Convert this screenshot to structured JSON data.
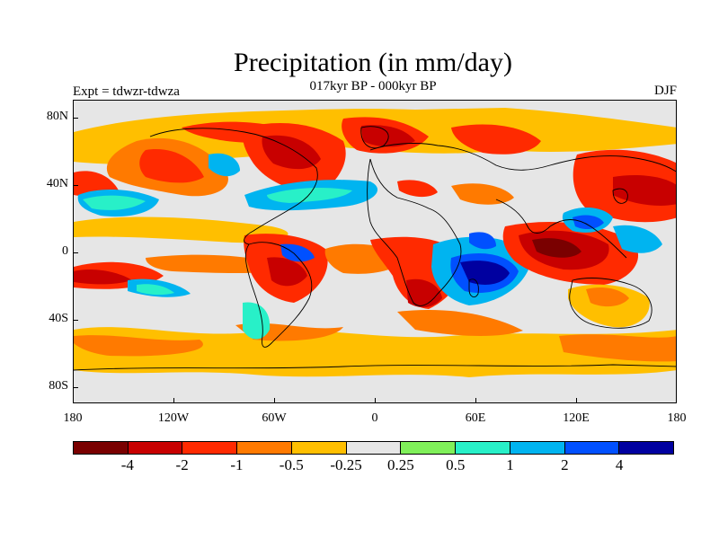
{
  "header": {
    "title": "Precipitation (in mm/day)",
    "subtitle": "017kyr BP - 000kyr BP",
    "experiment": "Expt = tdwzr-tdwza",
    "season": "DJF"
  },
  "axes": {
    "lat_labels": [
      "80N",
      "40N",
      "0",
      "40S",
      "80S"
    ],
    "lon_labels": [
      "180",
      "120W",
      "60W",
      "0",
      "60E",
      "120E",
      "180"
    ]
  },
  "colorbar": {
    "colors": [
      "#7a0000",
      "#c80000",
      "#ff2a00",
      "#ff7a00",
      "#ffbf00",
      "#e6e6e6",
      "#80f05a",
      "#28f0c8",
      "#00b4f0",
      "#0050ff",
      "#0000a0"
    ],
    "labels": [
      "-4",
      "-2",
      "-1",
      "-0.5",
      "-0.25",
      "0.25",
      "0.5",
      "1",
      "2",
      "4"
    ]
  },
  "map": {
    "background": "#e6e6e6",
    "coastline_color": "#000000"
  }
}
